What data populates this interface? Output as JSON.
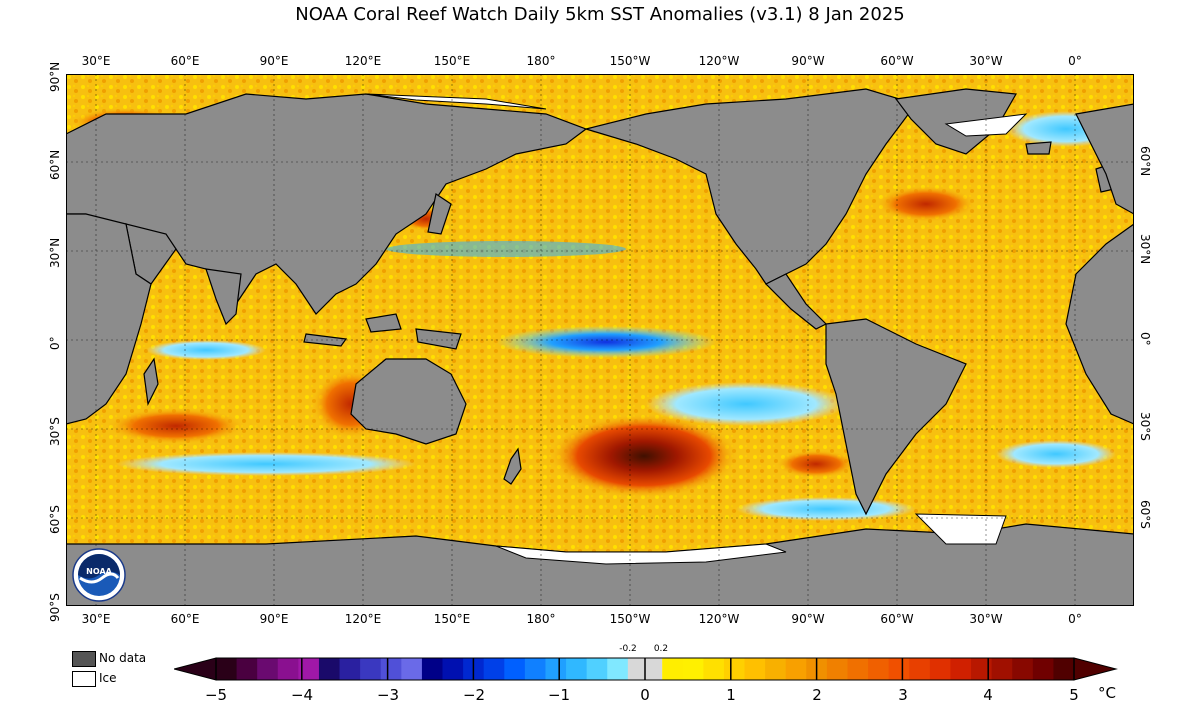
{
  "title": "NOAA Coral Reef Watch Daily 5km SST Anomalies  (v3.1)   8 Jan 2025",
  "lon_ticks": [
    "30°E",
    "60°E",
    "90°E",
    "120°E",
    "150°E",
    "180°",
    "150°W",
    "120°W",
    "90°W",
    "60°W",
    "30°W",
    "0°"
  ],
  "lat_ticks_left": [
    "90°N",
    "60°N",
    "30°N",
    "0°",
    "30°S",
    "60°S",
    "90°S"
  ],
  "lat_ticks_right": [
    "60°N",
    "30°N",
    "0°",
    "30°S",
    "60°S"
  ],
  "legend": {
    "no_data_label": "No data",
    "ice_label": "Ice",
    "no_data_color": "#555555",
    "ice_color": "#ffffff"
  },
  "colorbar": {
    "labels": [
      "−5",
      "−4",
      "−3",
      "−2",
      "−1",
      "0",
      "1",
      "2",
      "3",
      "4",
      "5"
    ],
    "small_labels": [
      "-0.2",
      "0.2"
    ],
    "unit": "°C",
    "colors_negative": [
      "#2a0018",
      "#4a0040",
      "#6a0a70",
      "#8a1090",
      "#a018a8",
      "#1a0a6a",
      "#2a20a0",
      "#3a38c0",
      "#5050d8",
      "#6a6ae8",
      "#000088",
      "#0010b0",
      "#0028d0",
      "#0040e8",
      "#0060ff",
      "#1080ff",
      "#20a0ff",
      "#30b8ff",
      "#50d0ff",
      "#80e8ff"
    ],
    "colors_positive": [
      "#ffee00",
      "#fff000",
      "#ffe000",
      "#ffd000",
      "#ffc000",
      "#f8b000",
      "#f8a000",
      "#f09000",
      "#f08000",
      "#f07000",
      "#f06000",
      "#f05000",
      "#e84000",
      "#e03000",
      "#d02000",
      "#b81800",
      "#a01000",
      "#880800",
      "#700000",
      "#500000"
    ],
    "neutral_color": "#d8d8d8"
  },
  "logo": {
    "name": "noaa-logo",
    "text": "NOAA"
  },
  "map_colors": {
    "ocean_base": "#f7c010",
    "land": "#8c8c8c",
    "ice": "#ffffff"
  }
}
